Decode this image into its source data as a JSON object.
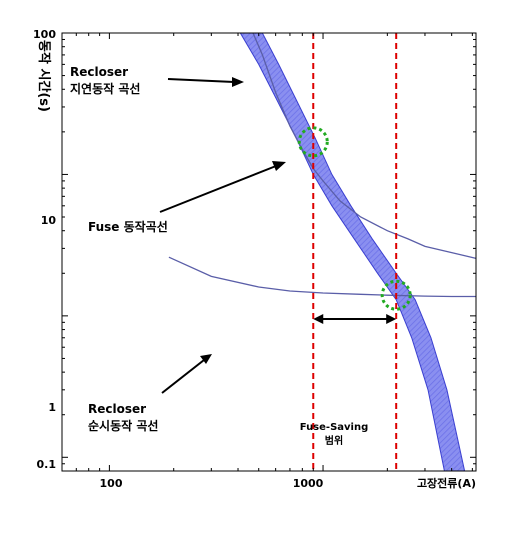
{
  "chart_data": {
    "type": "line",
    "xscale": "log",
    "yscale": "log",
    "xlim": [
      60,
      5200
    ],
    "ylim": [
      0.08,
      100
    ],
    "xlabel": "고장전류(A)",
    "ylabel": "동작 시간(s)",
    "x_ticks": [
      "100",
      "1000"
    ],
    "y_ticks": [
      "100",
      "10",
      "1",
      "0.1"
    ],
    "grid": false,
    "series": [
      {
        "kind": "line",
        "x": [
          470,
          520,
          600,
          700,
          800,
          900,
          1000,
          1200,
          1500,
          2000,
          2500,
          3000,
          4000,
          5200
        ],
        "y": [
          100,
          70,
          38,
          22,
          15,
          11,
          9,
          6.5,
          5,
          4,
          3.5,
          3.1,
          2.8,
          2.55
        ]
      },
      {
        "kind": "line",
        "x": [
          190,
          300,
          500,
          700,
          1000,
          1500,
          2000,
          3000,
          4000,
          5200
        ],
        "y": [
          2.6,
          1.9,
          1.6,
          1.5,
          1.45,
          1.42,
          1.4,
          1.38,
          1.37,
          1.37
        ]
      },
      {
        "kind": "band",
        "x_left": [
          410,
          500,
          600,
          750,
          900,
          1100,
          1400,
          1800,
          2200,
          2600,
          3100,
          3700
        ],
        "x_right": [
          520,
          620,
          740,
          920,
          1100,
          1350,
          1700,
          2200,
          2700,
          3200,
          3800,
          4600
        ],
        "y": [
          100,
          60,
          35,
          18,
          10,
          6,
          3.5,
          2,
          1.3,
          0.7,
          0.3,
          0.08
        ]
      }
    ],
    "vlines": [
      {
        "x": 900
      },
      {
        "x": 2200
      }
    ],
    "circles": [
      {
        "x": 900,
        "y": 17
      },
      {
        "x": 2200,
        "y": 1.4
      }
    ],
    "range_arrow": {
      "x_from": 900,
      "x_to": 2200,
      "y": 0.95
    },
    "annotations": {
      "recloser_delay": [
        "Recloser",
        "지연동작 곡선"
      ],
      "fuse_curve": "Fuse 동작곡선",
      "recloser_instant": [
        "Recloser",
        "순시동작 곡선"
      ],
      "fuse_saving": [
        "Fuse-Saving",
        "범위"
      ]
    },
    "colors": {
      "axis": "#000000",
      "recloser_curves": "#5a5ea8",
      "fuse_band_fill": "#8a8ff0",
      "fuse_band_edge": "#3a3fd0",
      "vlines": "#dd0000",
      "circles": "#22aa22"
    }
  }
}
